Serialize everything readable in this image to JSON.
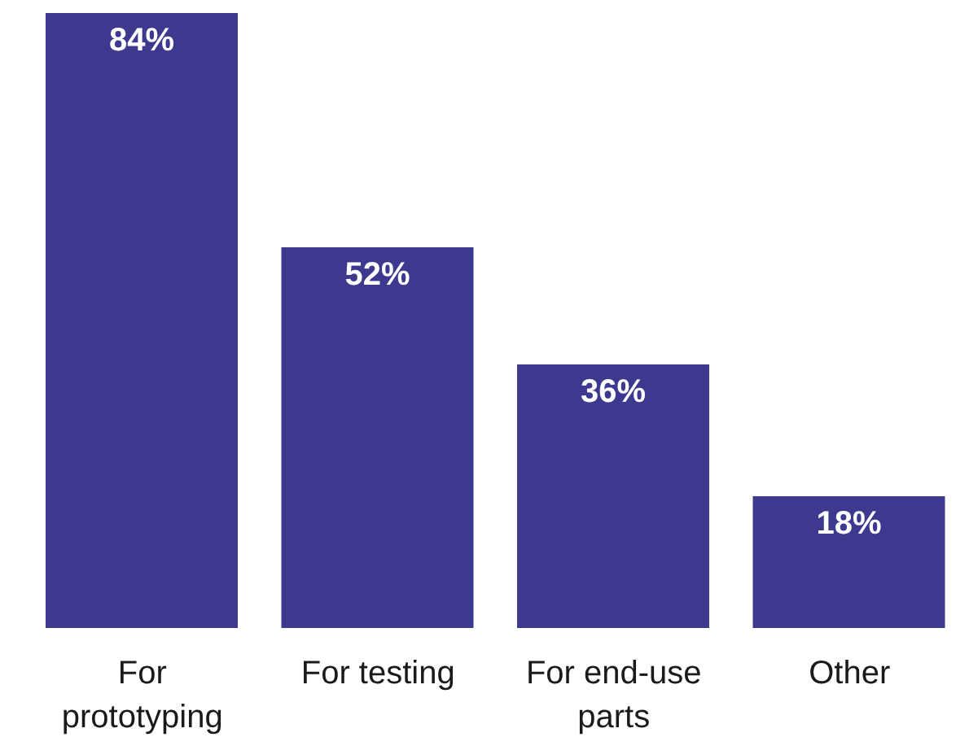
{
  "chart_data": {
    "type": "bar",
    "categories": [
      "For prototyping",
      "For testing",
      "For end-use parts",
      "Other"
    ],
    "values": [
      84,
      52,
      36,
      18
    ],
    "value_labels": [
      "84%",
      "52%",
      "36%",
      "18%"
    ],
    "color": "#3d398f"
  }
}
